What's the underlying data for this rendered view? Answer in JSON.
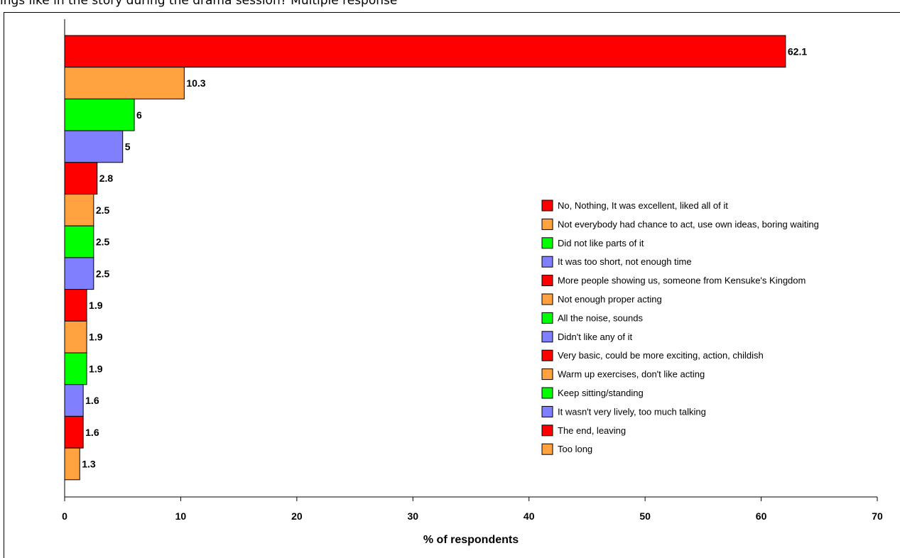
{
  "header_text": "ings like in the story during the drama session? Multiple response",
  "chart_data": {
    "type": "bar",
    "orientation": "horizontal",
    "xlabel": "% of respondents",
    "xlim": [
      0,
      70
    ],
    "xticks": [
      "0",
      "10",
      "20",
      "30",
      "40",
      "50",
      "60",
      "70"
    ],
    "grid": false,
    "legend_position": "right",
    "palette": [
      "#ff0000",
      "#ffa23f",
      "#00ff00",
      "#8080ff"
    ],
    "categories": [
      "No, Nothing, It was excellent, liked all of it",
      "Not everybody had chance to act, use own ideas, boring waiting",
      "Did not like parts of it",
      "It was too short, not enough time",
      "More people showing us, someone from Kensuke's Kingdom",
      "Not enough proper acting",
      "All the noise, sounds",
      "Didn't like any of it",
      "Very basic, could be more exciting, action, childish",
      "Warm up exercises, don't like acting",
      "Keep sitting/standing",
      "It wasn't very lively, too much talking",
      "The end, leaving",
      "Too long"
    ],
    "values": [
      62.1,
      10.3,
      6,
      5,
      2.8,
      2.5,
      2.5,
      2.5,
      1.9,
      1.9,
      1.9,
      1.6,
      1.6,
      1.3
    ],
    "value_labels": [
      "62.1",
      "10.3",
      "6",
      "5",
      "2.8",
      "2.5",
      "2.5",
      "2.5",
      "1.9",
      "1.9",
      "1.9",
      "1.6",
      "1.6",
      "1.3"
    ]
  }
}
